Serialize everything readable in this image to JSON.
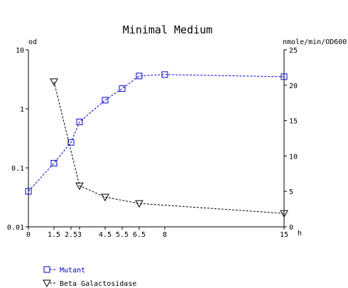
{
  "chart_data": {
    "type": "line",
    "title": "Minimal Medium",
    "xlabel": "h",
    "ylabel_left": "od",
    "ylabel_right": "nmole/min/OD600",
    "x_ticks": [
      0,
      1.5,
      2.5,
      3,
      4.5,
      5.5,
      6.5,
      8,
      15
    ],
    "x_tick_labels": [
      "0",
      "1.5",
      "2.5",
      "3",
      "4.5",
      "5.5",
      "6.5",
      "8",
      "15"
    ],
    "xlim": [
      0,
      15
    ],
    "y_left_scale": "log",
    "y_left_lim": [
      0.01,
      10
    ],
    "y_left_ticks": [
      0.01,
      0.1,
      1,
      10
    ],
    "y_left_tick_labels": [
      "0.01",
      "0.1",
      "1",
      "10"
    ],
    "y_right_lim": [
      0,
      25
    ],
    "y_right_ticks": [
      0,
      5,
      10,
      15,
      20,
      25
    ],
    "y_right_tick_labels": [
      "0",
      "5",
      "10",
      "15",
      "20",
      "25"
    ],
    "grid": false,
    "legend_position": "bottom-left",
    "series": [
      {
        "name": "Mutant",
        "axis": "left",
        "color": "#0000cc",
        "marker": "square",
        "x": [
          0,
          1.5,
          2.5,
          3,
          4.5,
          5.5,
          6.5,
          8,
          15
        ],
        "y": [
          0.04,
          0.12,
          0.27,
          0.6,
          1.4,
          2.2,
          3.6,
          3.8,
          3.5
        ]
      },
      {
        "name": "Beta Galactosidase",
        "axis": "right",
        "color": "#000000",
        "marker": "triangle-down",
        "x": [
          1.5,
          3,
          4.5,
          6.5,
          15
        ],
        "y": [
          20.5,
          5.8,
          4.2,
          3.3,
          1.9
        ]
      }
    ]
  }
}
